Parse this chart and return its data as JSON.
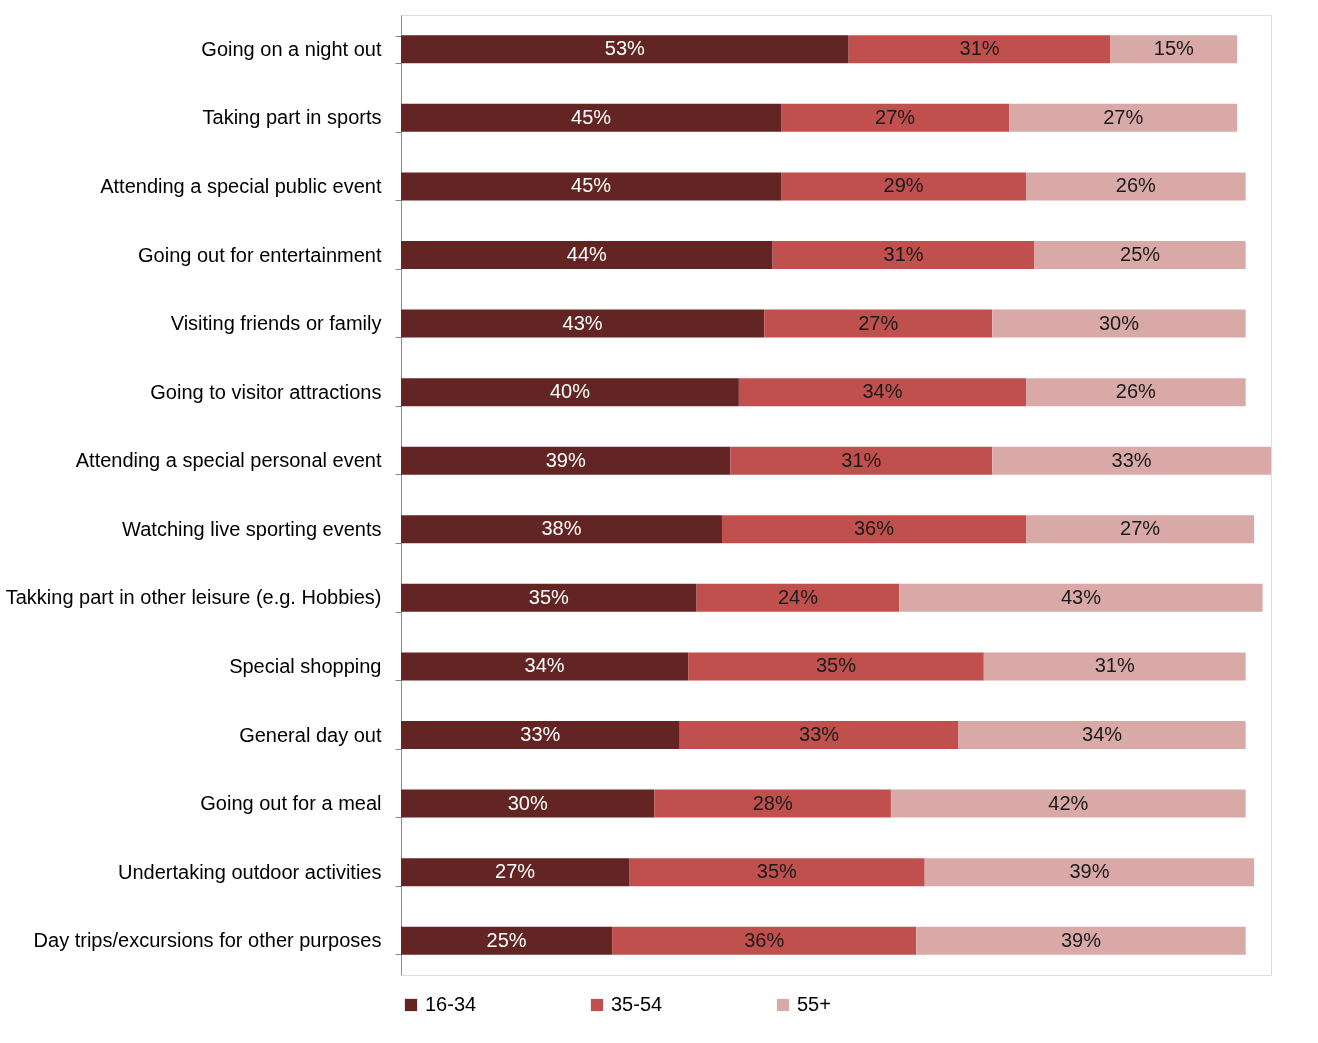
{
  "chart_data": {
    "type": "bar",
    "orientation": "horizontal",
    "stacked": true,
    "legend": "bottom",
    "categories": [
      "Going on a night out",
      "Taking part in sports",
      "Attending a special public event",
      "Going out for entertainment",
      "Visiting friends or family",
      "Going to visitor attractions",
      "Attending a special personal event",
      "Watching live sporting events",
      "Takking part in other leisure (e.g. Hobbies)",
      "Special shopping",
      "General day out",
      "Going out for a meal",
      "Undertaking outdoor activities",
      "Day trips/excursions for other purposes"
    ],
    "series": [
      {
        "name": "16-34",
        "color": "#632523",
        "values": [
          53,
          45,
          45,
          44,
          43,
          40,
          39,
          38,
          35,
          34,
          33,
          30,
          27,
          25
        ],
        "value_labels": [
          "53%",
          "45%",
          "45%",
          "44%",
          "43%",
          "40%",
          "39%",
          "38%",
          "35%",
          "34%",
          "33%",
          "30%",
          "27%",
          "25%"
        ]
      },
      {
        "name": "35-54",
        "color": "#c0504d",
        "values": [
          31,
          27,
          29,
          31,
          27,
          34,
          31,
          36,
          24,
          35,
          33,
          28,
          35,
          36
        ],
        "value_labels": [
          "31%",
          "27%",
          "29%",
          "31%",
          "27%",
          "34%",
          "31%",
          "36%",
          "24%",
          "35%",
          "33%",
          "28%",
          "35%",
          "36%"
        ]
      },
      {
        "name": "55+",
        "color": "#d9a9a8",
        "values": [
          15,
          27,
          26,
          25,
          30,
          26,
          33,
          27,
          43,
          31,
          34,
          42,
          39,
          39
        ],
        "value_labels": [
          "15%",
          "27%",
          "26%",
          "25%",
          "30%",
          "26%",
          "33%",
          "27%",
          "43%",
          "31%",
          "34%",
          "42%",
          "39%",
          "39%"
        ]
      }
    ]
  }
}
